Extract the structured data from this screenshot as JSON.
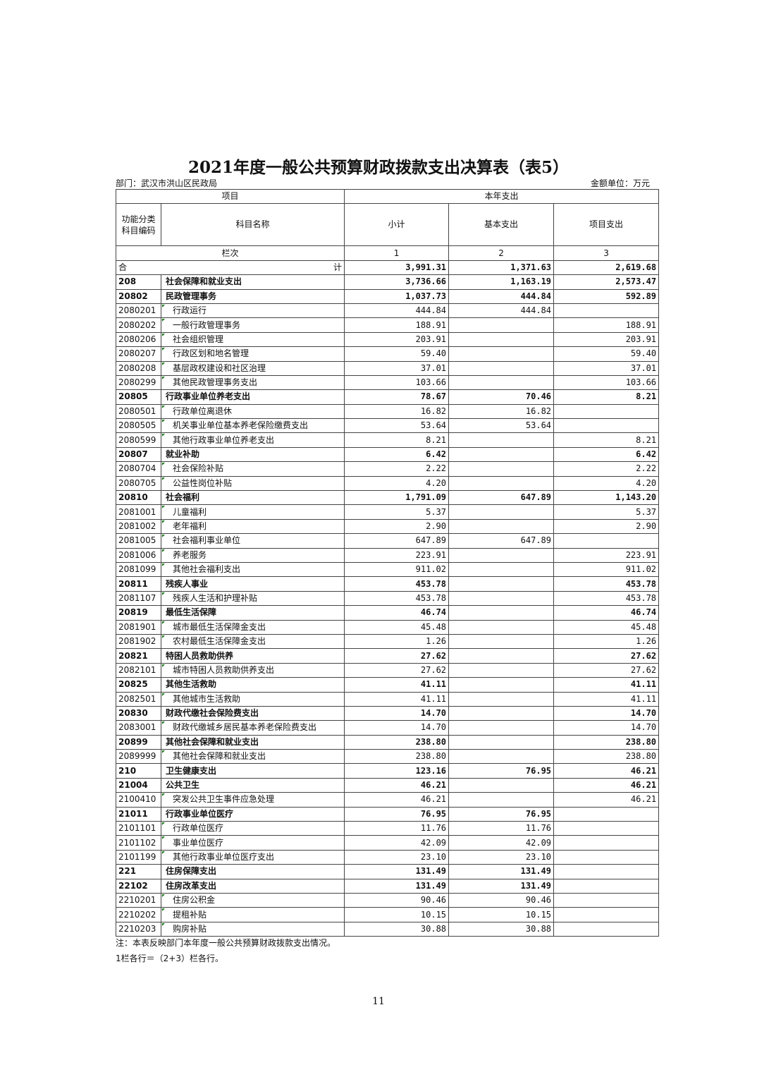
{
  "title": "2021年度一般公共预算财政拨款支出决算表（表5）",
  "department": "部门：武汉市洪山区民政局",
  "unit": "金额单位：万元",
  "header": {
    "item": "项目",
    "current_year": "本年支出",
    "code": "功能分类科目编码",
    "name": "科目名称",
    "subtotal": "小计",
    "basic": "基本支出",
    "project": "项目支出",
    "column_index": "栏次",
    "col1": "1",
    "col2": "2",
    "col3": "3"
  },
  "total": {
    "label_left": "合",
    "label_right": "计",
    "subtotal": "3,991.31",
    "basic": "1,371.63",
    "project": "2,619.68"
  },
  "rows": [
    [
      "208",
      "社会保障和就业支出",
      "3,736.66",
      "1,163.19",
      "2,573.47"
    ],
    [
      "20802",
      "民政管理事务",
      "1,037.73",
      "444.84",
      "592.89"
    ],
    [
      "2080201",
      "行政运行",
      "444.84",
      "444.84",
      ""
    ],
    [
      "2080202",
      "一般行政管理事务",
      "188.91",
      "",
      "188.91"
    ],
    [
      "2080206",
      "社会组织管理",
      "203.91",
      "",
      "203.91"
    ],
    [
      "2080207",
      "行政区划和地名管理",
      "59.40",
      "",
      "59.40"
    ],
    [
      "2080208",
      "基层政权建设和社区治理",
      "37.01",
      "",
      "37.01"
    ],
    [
      "2080299",
      "其他民政管理事务支出",
      "103.66",
      "",
      "103.66"
    ],
    [
      "20805",
      "行政事业单位养老支出",
      "78.67",
      "70.46",
      "8.21"
    ],
    [
      "2080501",
      "行政单位离退休",
      "16.82",
      "16.82",
      ""
    ],
    [
      "2080505",
      "机关事业单位基本养老保险缴费支出",
      "53.64",
      "53.64",
      ""
    ],
    [
      "2080599",
      "其他行政事业单位养老支出",
      "8.21",
      "",
      "8.21"
    ],
    [
      "20807",
      "就业补助",
      "6.42",
      "",
      "6.42"
    ],
    [
      "2080704",
      "社会保险补贴",
      "2.22",
      "",
      "2.22"
    ],
    [
      "2080705",
      "公益性岗位补贴",
      "4.20",
      "",
      "4.20"
    ],
    [
      "20810",
      "社会福利",
      "1,791.09",
      "647.89",
      "1,143.20"
    ],
    [
      "2081001",
      "儿童福利",
      "5.37",
      "",
      "5.37"
    ],
    [
      "2081002",
      "老年福利",
      "2.90",
      "",
      "2.90"
    ],
    [
      "2081005",
      "社会福利事业单位",
      "647.89",
      "647.89",
      ""
    ],
    [
      "2081006",
      "养老服务",
      "223.91",
      "",
      "223.91"
    ],
    [
      "2081099",
      "其他社会福利支出",
      "911.02",
      "",
      "911.02"
    ],
    [
      "20811",
      "残疾人事业",
      "453.78",
      "",
      "453.78"
    ],
    [
      "2081107",
      "残疾人生活和护理补贴",
      "453.78",
      "",
      "453.78"
    ],
    [
      "20819",
      "最低生活保障",
      "46.74",
      "",
      "46.74"
    ],
    [
      "2081901",
      "城市最低生活保障金支出",
      "45.48",
      "",
      "45.48"
    ],
    [
      "2081902",
      "农村最低生活保障金支出",
      "1.26",
      "",
      "1.26"
    ],
    [
      "20821",
      "特困人员救助供养",
      "27.62",
      "",
      "27.62"
    ],
    [
      "2082101",
      "城市特困人员救助供养支出",
      "27.62",
      "",
      "27.62"
    ],
    [
      "20825",
      "其他生活救助",
      "41.11",
      "",
      "41.11"
    ],
    [
      "2082501",
      "其他城市生活救助",
      "41.11",
      "",
      "41.11"
    ],
    [
      "20830",
      "财政代缴社会保险费支出",
      "14.70",
      "",
      "14.70"
    ],
    [
      "2083001",
      "财政代缴城乡居民基本养老保险费支出",
      "14.70",
      "",
      "14.70"
    ],
    [
      "20899",
      "其他社会保障和就业支出",
      "238.80",
      "",
      "238.80"
    ],
    [
      "2089999",
      "其他社会保障和就业支出",
      "238.80",
      "",
      "238.80"
    ],
    [
      "210",
      "卫生健康支出",
      "123.16",
      "76.95",
      "46.21"
    ],
    [
      "21004",
      "公共卫生",
      "46.21",
      "",
      "46.21"
    ],
    [
      "2100410",
      "突发公共卫生事件应急处理",
      "46.21",
      "",
      "46.21"
    ],
    [
      "21011",
      "行政事业单位医疗",
      "76.95",
      "76.95",
      ""
    ],
    [
      "2101101",
      "行政单位医疗",
      "11.76",
      "11.76",
      ""
    ],
    [
      "2101102",
      "事业单位医疗",
      "42.09",
      "42.09",
      ""
    ],
    [
      "2101199",
      "其他行政事业单位医疗支出",
      "23.10",
      "23.10",
      ""
    ],
    [
      "221",
      "住房保障支出",
      "131.49",
      "131.49",
      ""
    ],
    [
      "22102",
      "住房改革支出",
      "131.49",
      "131.49",
      ""
    ],
    [
      "2210201",
      "住房公积金",
      "90.46",
      "90.46",
      ""
    ],
    [
      "2210202",
      "提租补贴",
      "10.15",
      "10.15",
      ""
    ],
    [
      "2210203",
      "购房补贴",
      "30.88",
      "30.88",
      ""
    ]
  ],
  "notes": [
    "注：本表反映部门本年度一般公共预算财政拨款支出情况。",
    "1栏各行＝（2+3）栏各行。"
  ],
  "page_number": "11"
}
